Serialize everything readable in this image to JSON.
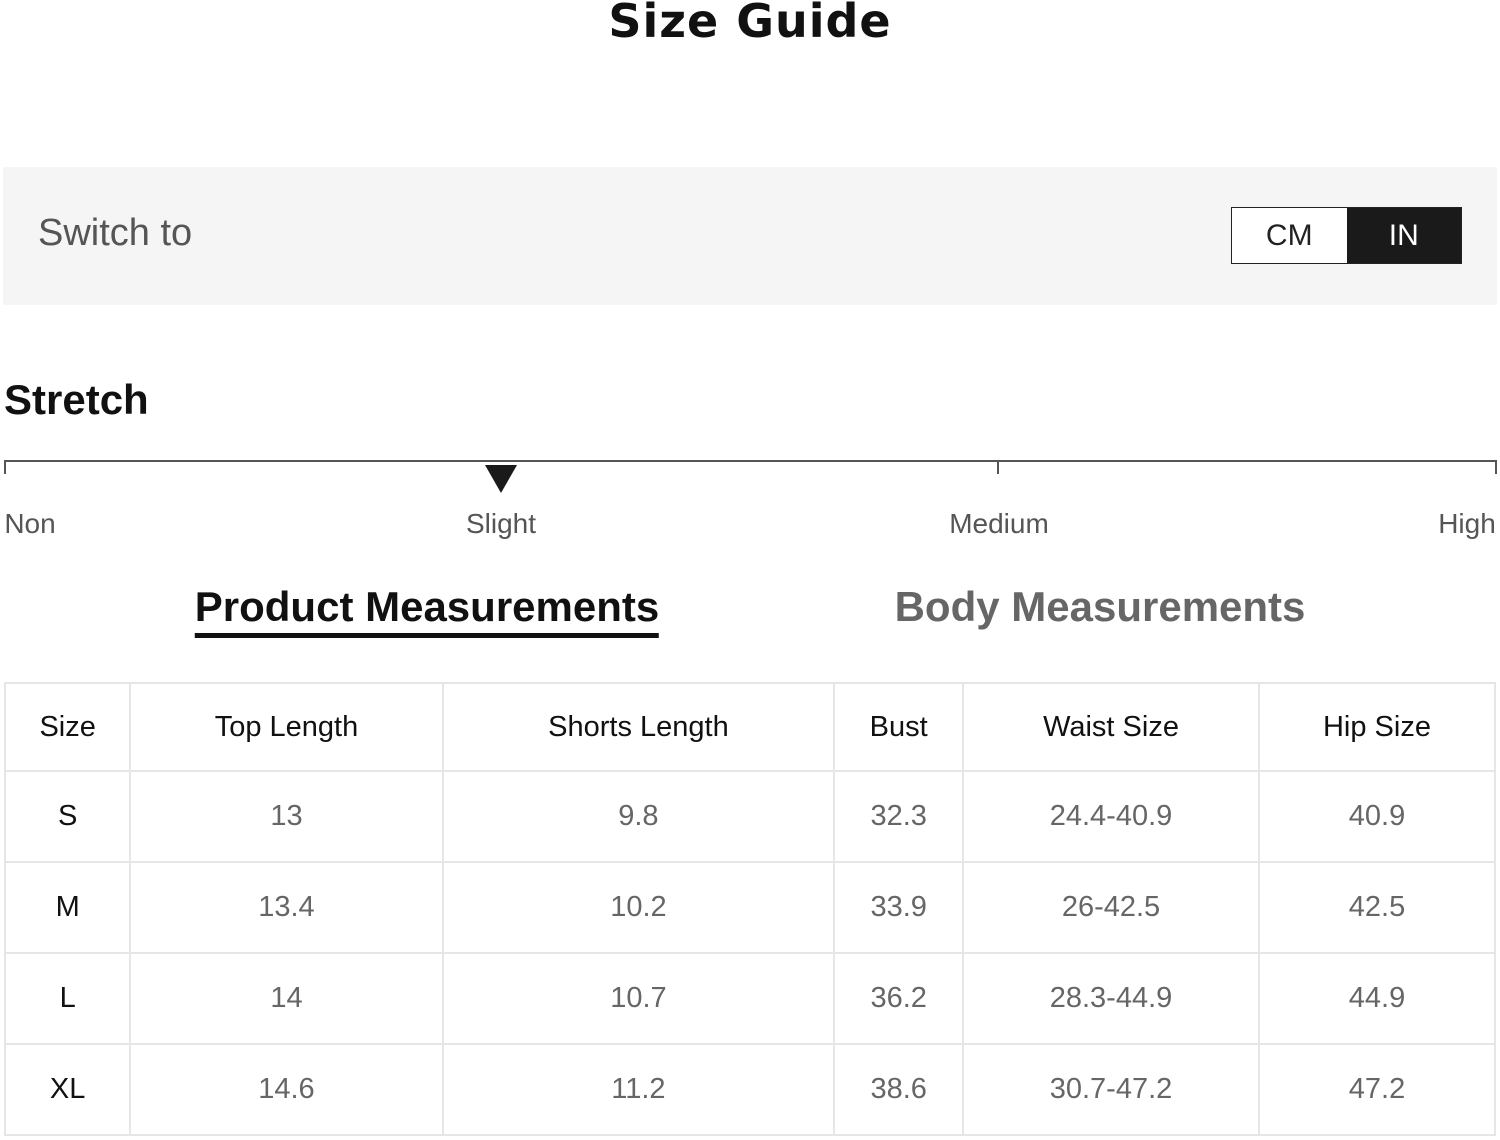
{
  "title": "Size Guide",
  "unit_switch": {
    "label": "Switch to",
    "options": [
      "CM",
      "IN"
    ],
    "selected": "IN"
  },
  "stretch": {
    "title": "Stretch",
    "levels": [
      "Non",
      "Slight",
      "Medium",
      "High"
    ],
    "selected": "Slight",
    "selected_fraction": 0.333
  },
  "tabs": [
    {
      "label": "Product Measurements",
      "active": true
    },
    {
      "label": "Body Measurements",
      "active": false
    }
  ],
  "table": {
    "headers": [
      "Size",
      "Top Length",
      "Shorts Length",
      "Bust",
      "Waist Size",
      "Hip Size"
    ],
    "rows": [
      [
        "S",
        "13",
        "9.8",
        "32.3",
        "24.4-40.9",
        "40.9"
      ],
      [
        "M",
        "13.4",
        "10.2",
        "33.9",
        "26-42.5",
        "42.5"
      ],
      [
        "L",
        "14",
        "10.7",
        "36.2",
        "28.3-44.9",
        "44.9"
      ],
      [
        "XL",
        "14.6",
        "11.2",
        "38.6",
        "30.7-47.2",
        "47.2"
      ]
    ]
  }
}
